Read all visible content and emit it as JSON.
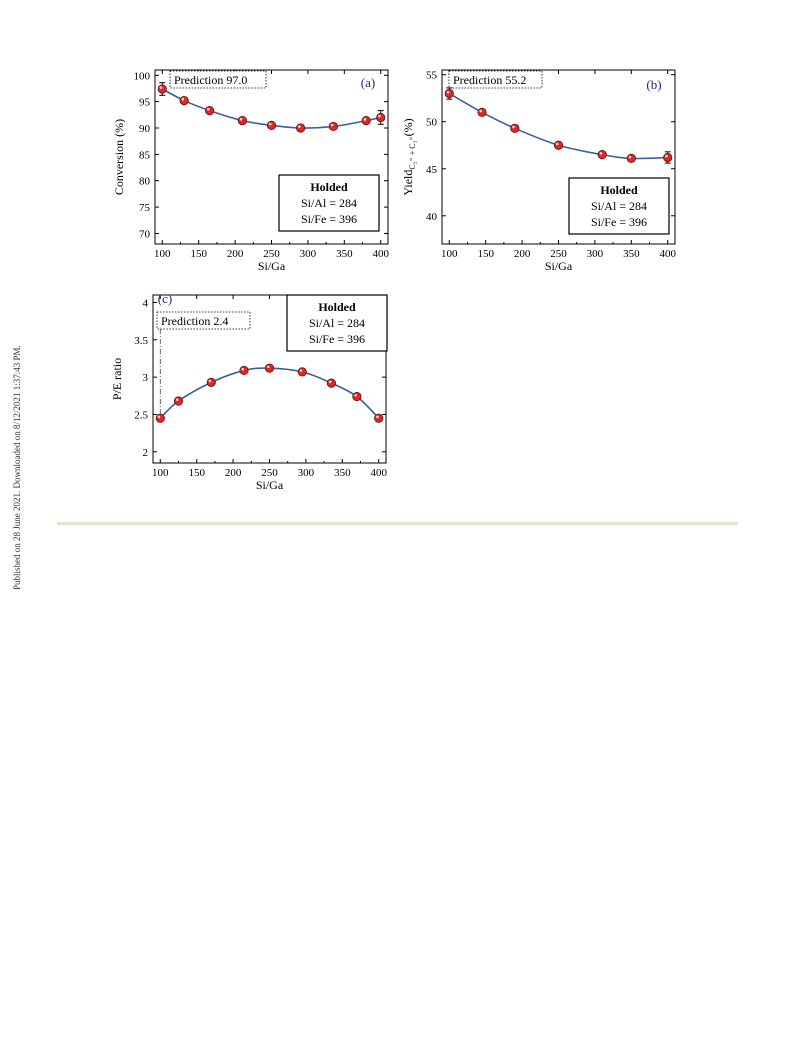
{
  "side_note": "Published on 28 June 2021. Downloaded on 8/12/2021 1:37:43 PM.",
  "colors": {
    "line": "#3b5f96",
    "marker": "#d92a2a",
    "marker_edge": "#6b0d0d"
  },
  "chart_data": [
    {
      "type": "line",
      "panel_label": "(a)",
      "xlabel": "Si/Ga",
      "ylabel": "Conversion (%)",
      "xlim": [
        90,
        410
      ],
      "ylim": [
        68,
        101
      ],
      "xticks": [
        100,
        150,
        200,
        250,
        300,
        350,
        400
      ],
      "yticks": [
        70,
        75,
        80,
        85,
        90,
        95,
        100
      ],
      "x": [
        100,
        130,
        165,
        210,
        250,
        290,
        335,
        380,
        400
      ],
      "y": [
        97.4,
        95.2,
        93.3,
        91.4,
        90.5,
        90.0,
        90.3,
        91.4,
        92.0
      ],
      "error_bars": [
        {
          "x": 100,
          "err": 1.2
        },
        {
          "x": 400,
          "err": 1.3
        }
      ],
      "prediction_box": "Prediction   97.0",
      "info_box": {
        "title": "Holded",
        "lines": [
          "Si/Al = 284",
          "Si/Fe = 396"
        ]
      }
    },
    {
      "type": "line",
      "panel_label": "(b)",
      "xlabel": "Si/Ga",
      "ylabel": "Yield C2= + C3= (%)",
      "ylabel_main": "Yield",
      "ylabel_sub": "C₂⁼ + C₃⁼",
      "ylabel_unit": "(%)",
      "xlim": [
        90,
        410
      ],
      "ylim": [
        37,
        55.5
      ],
      "xticks": [
        100,
        150,
        200,
        250,
        300,
        350,
        400
      ],
      "yticks": [
        40,
        45,
        50,
        55
      ],
      "x": [
        100,
        145,
        190,
        250,
        310,
        350,
        400
      ],
      "y": [
        53.0,
        51.0,
        49.3,
        47.5,
        46.5,
        46.1,
        46.2
      ],
      "error_bars": [
        {
          "x": 100,
          "err": 0.6
        },
        {
          "x": 400,
          "err": 0.6
        }
      ],
      "prediction_box": "Prediction   55.2",
      "info_box": {
        "title": "Holded",
        "lines": [
          "Si/Al = 284",
          "Si/Fe = 396"
        ]
      }
    },
    {
      "type": "line",
      "panel_label": "(c)",
      "xlabel": "Si/Ga",
      "ylabel": "P/E ratio",
      "xlim": [
        90,
        410
      ],
      "ylim": [
        1.85,
        4.1
      ],
      "xticks": [
        100,
        150,
        200,
        250,
        300,
        350,
        400
      ],
      "yticks": [
        2,
        2.5,
        3,
        3.5,
        4
      ],
      "x": [
        100,
        125,
        170,
        215,
        250,
        295,
        335,
        370,
        400
      ],
      "y": [
        2.45,
        2.68,
        2.93,
        3.09,
        3.12,
        3.07,
        2.92,
        2.74,
        2.45
      ],
      "error_bars": [],
      "prediction_box": "Prediction   2.4",
      "info_box": {
        "title": "Holded",
        "lines": [
          "Si/Al = 284",
          "Si/Fe = 396"
        ]
      }
    }
  ]
}
